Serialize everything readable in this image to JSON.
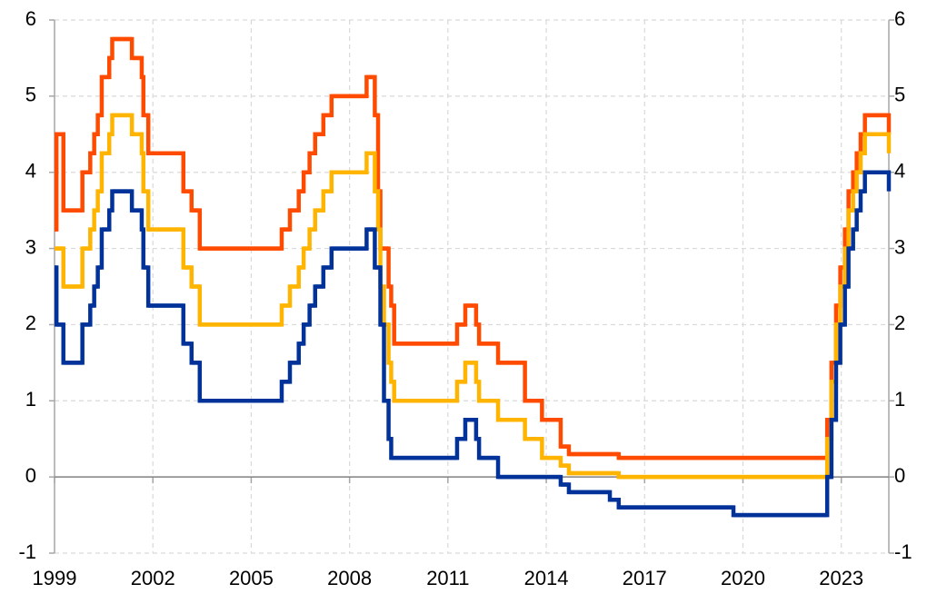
{
  "chart_data": {
    "type": "line",
    "step": true,
    "grid": true,
    "x": [
      1999.0,
      1999.06,
      1999.27,
      1999.85,
      2000.09,
      2000.21,
      2000.32,
      2000.44,
      2000.67,
      2000.76,
      2001.36,
      2001.66,
      2001.71,
      2001.86,
      2002.93,
      2003.18,
      2003.43,
      2005.93,
      2006.18,
      2006.45,
      2006.6,
      2006.78,
      2006.95,
      2007.2,
      2007.45,
      2008.52,
      2008.77,
      2008.87,
      2008.94,
      2009.05,
      2009.19,
      2009.27,
      2009.36,
      2011.28,
      2011.53,
      2011.86,
      2011.95,
      2012.53,
      2013.35,
      2013.87,
      2014.44,
      2014.69,
      2015.94,
      2016.21,
      2019.71,
      2022.57,
      2022.7,
      2022.84,
      2022.97,
      2023.11,
      2023.22,
      2023.36,
      2023.47,
      2023.59,
      2023.72,
      2024.45
    ],
    "series": [
      {
        "color": "#ff4b00",
        "values": [
          3.25,
          4.5,
          3.5,
          4.0,
          4.25,
          4.5,
          4.75,
          5.25,
          5.5,
          5.75,
          5.5,
          5.25,
          4.75,
          4.25,
          3.75,
          3.5,
          3.0,
          3.25,
          3.5,
          3.75,
          4.0,
          4.25,
          4.5,
          4.75,
          5.0,
          5.25,
          4.75,
          3.75,
          3.0,
          3.0,
          2.5,
          2.25,
          1.75,
          2.0,
          2.25,
          2.0,
          1.75,
          1.5,
          1.0,
          0.75,
          0.4,
          0.3,
          0.3,
          0.25,
          0.25,
          0.75,
          1.5,
          2.25,
          2.75,
          3.25,
          3.75,
          4.0,
          4.25,
          4.5,
          4.75,
          4.5
        ]
      },
      {
        "color": "#ffb400",
        "values": [
          3.0,
          3.0,
          2.5,
          3.0,
          3.25,
          3.5,
          3.75,
          4.25,
          4.5,
          4.75,
          4.5,
          4.25,
          3.75,
          3.25,
          2.75,
          2.5,
          2.0,
          2.25,
          2.5,
          2.75,
          3.0,
          3.25,
          3.5,
          3.75,
          4.0,
          4.25,
          3.75,
          3.25,
          2.5,
          2.0,
          1.5,
          1.25,
          1.0,
          1.25,
          1.5,
          1.25,
          1.0,
          0.75,
          0.5,
          0.25,
          0.15,
          0.05,
          0.05,
          0.0,
          0.0,
          0.5,
          1.25,
          2.0,
          2.5,
          3.0,
          3.5,
          3.75,
          4.0,
          4.25,
          4.5,
          4.25
        ]
      },
      {
        "color": "#003299",
        "values": [
          2.75,
          2.0,
          1.5,
          2.0,
          2.25,
          2.5,
          2.75,
          3.25,
          3.5,
          3.75,
          3.5,
          3.25,
          2.75,
          2.25,
          1.75,
          1.5,
          1.0,
          1.25,
          1.5,
          1.75,
          2.0,
          2.25,
          2.5,
          2.75,
          3.0,
          3.25,
          2.75,
          2.75,
          2.0,
          1.0,
          0.5,
          0.25,
          0.25,
          0.5,
          0.75,
          0.5,
          0.25,
          0.0,
          0.0,
          0.0,
          -0.1,
          -0.2,
          -0.3,
          -0.4,
          -0.5,
          0.0,
          0.75,
          1.5,
          2.0,
          2.5,
          3.0,
          3.25,
          3.5,
          3.75,
          4.0,
          3.75
        ]
      }
    ],
    "xlim": [
      1999,
      2024.45
    ],
    "xticks": [
      1999,
      2002,
      2005,
      2008,
      2011,
      2014,
      2017,
      2020,
      2023
    ],
    "ylim": [
      -1,
      6
    ],
    "yticks": [
      -1,
      0,
      1,
      2,
      3,
      4,
      5,
      6
    ],
    "y2lim": [
      -1,
      6
    ],
    "y2ticks": [
      -1,
      0,
      1,
      2,
      3,
      4,
      5,
      6
    ]
  }
}
